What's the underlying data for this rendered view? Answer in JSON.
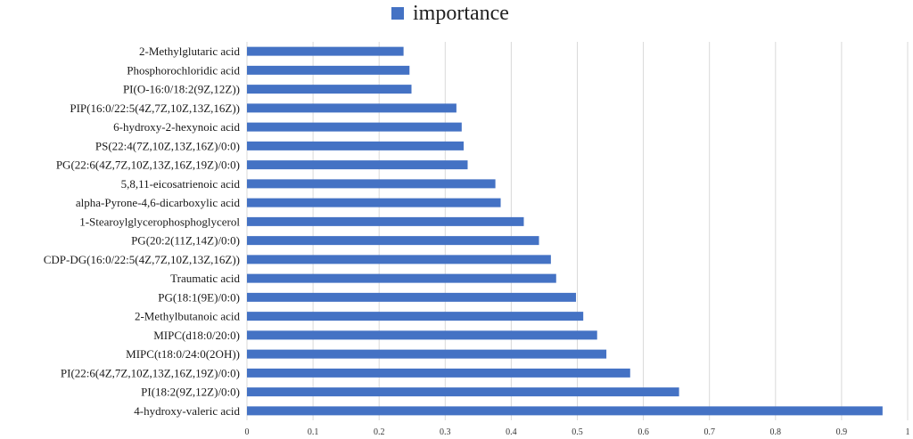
{
  "chart_data": {
    "type": "bar",
    "orientation": "horizontal",
    "title": "",
    "xlabel": "",
    "ylabel": "",
    "xlim": [
      0,
      1
    ],
    "xticks": [
      0,
      0.1,
      0.2,
      0.3,
      0.4,
      0.5,
      0.6,
      0.7,
      0.8,
      0.9,
      1
    ],
    "xtick_labels": [
      "0",
      "0.1",
      "0.2",
      "0.3",
      "0.4",
      "0.5",
      "0.6",
      "0.7",
      "0.8",
      "0.9",
      "1"
    ],
    "grid": true,
    "legend_position": "top-center",
    "categories": [
      "2-Methylglutaric acid",
      "Phosphorochloridic acid",
      "PI(O-16:0/18:2(9Z,12Z))",
      "PIP(16:0/22:5(4Z,7Z,10Z,13Z,16Z))",
      "6-hydroxy-2-hexynoic acid",
      "PS(22:4(7Z,10Z,13Z,16Z)/0:0)",
      "PG(22:6(4Z,7Z,10Z,13Z,16Z,19Z)/0:0)",
      "5,8,11-eicosatrienoic acid",
      "alpha-Pyrone-4,6-dicarboxylic acid",
      "1-Stearoylglycerophosphoglycerol",
      "PG(20:2(11Z,14Z)/0:0)",
      "CDP-DG(16:0/22:5(4Z,7Z,10Z,13Z,16Z))",
      "Traumatic acid",
      "PG(18:1(9E)/0:0)",
      "2-Methylbutanoic acid",
      "MIPC(d18:0/20:0)",
      "MIPC(t18:0/24:0(2OH))",
      "PI(22:6(4Z,7Z,10Z,13Z,16Z,19Z)/0:0)",
      "PI(18:2(9Z,12Z)/0:0)",
      "4-hydroxy-valeric acid"
    ],
    "series": [
      {
        "name": "importance",
        "color": "#4472C4",
        "values": [
          0.237,
          0.246,
          0.249,
          0.317,
          0.325,
          0.328,
          0.334,
          0.376,
          0.384,
          0.419,
          0.442,
          0.46,
          0.468,
          0.498,
          0.509,
          0.53,
          0.544,
          0.58,
          0.654,
          0.962
        ]
      }
    ]
  }
}
